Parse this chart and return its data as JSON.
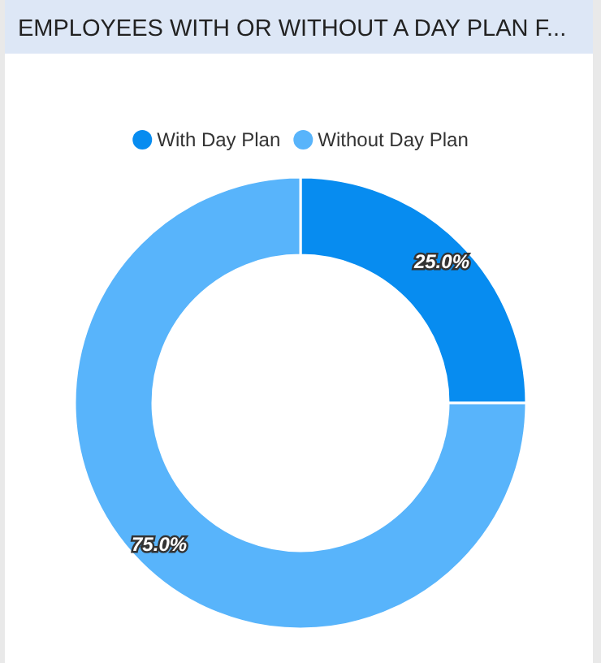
{
  "chart_data": {
    "type": "donut",
    "title": "EMPLOYEES WITH OR WITHOUT A DAY PLAN F...",
    "categories": [
      "With Day Plan",
      "Without Day Plan"
    ],
    "values": [
      25.0,
      75.0
    ],
    "colors": [
      "#078cf0",
      "#58b4fb"
    ],
    "legend": "top",
    "value_labels": [
      "25.0%",
      "75.0%"
    ]
  }
}
